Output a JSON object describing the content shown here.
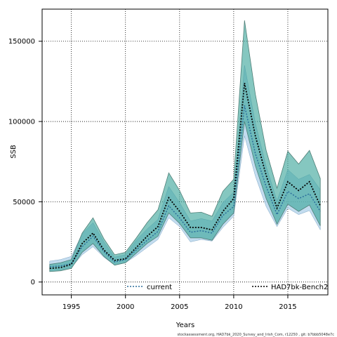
{
  "chart_data": {
    "type": "line",
    "xlabel": "Years",
    "ylabel": "SSB",
    "xlim": [
      1992.3,
      2018.7
    ],
    "ylim": [
      -8000,
      170000
    ],
    "x_ticks": [
      1995,
      2000,
      2005,
      2010,
      2015
    ],
    "y_ticks": [
      0,
      50000,
      100000,
      150000
    ],
    "grid": true,
    "legend_position": "bottom",
    "footnote": "stockassessment.org, HAD7bk_2020_Survey_and_Irish_Com, r12250 , git: b7bbb5048e7c",
    "colors": {
      "current": "#2b6f9c",
      "current_band": "#a9cde8",
      "bench": "#000000",
      "bench_band": "#3aa49a"
    },
    "x": [
      1993,
      1994,
      1995,
      1996,
      1997,
      1998,
      1999,
      2000,
      2001,
      2002,
      2003,
      2004,
      2005,
      2006,
      2007,
      2008,
      2009,
      2010,
      2011,
      2012,
      2013,
      2014,
      2015,
      2016,
      2017,
      2018
    ],
    "series": [
      {
        "name": "current",
        "values": [
          9500,
          10000,
          11500,
          22000,
          28500,
          19000,
          12500,
          14000,
          20000,
          26000,
          31500,
          47500,
          40000,
          31000,
          32000,
          30500,
          41500,
          47000,
          110000,
          80000,
          59500,
          42000,
          56500,
          52000,
          55000,
          44000
        ],
        "lower": [
          7000,
          7500,
          9000,
          17000,
          22000,
          15500,
          10500,
          12000,
          16500,
          21500,
          26500,
          40000,
          34500,
          25000,
          26500,
          25500,
          34000,
          41000,
          91000,
          66000,
          47000,
          34500,
          46000,
          42000,
          44500,
          32500
        ],
        "upper": [
          13000,
          14000,
          16000,
          30000,
          37000,
          25000,
          15500,
          17000,
          26000,
          33000,
          39000,
          59500,
          49500,
          38000,
          39500,
          38000,
          49500,
          56000,
          135000,
          99000,
          72000,
          50500,
          70000,
          64000,
          67000,
          57500
        ]
      },
      {
        "name": "HAD7bk-Bench2",
        "values": [
          8500,
          9000,
          11000,
          24000,
          30500,
          20000,
          13500,
          14500,
          21500,
          28500,
          34500,
          52500,
          44000,
          34000,
          34000,
          32500,
          44000,
          52000,
          124000,
          91000,
          66500,
          46000,
          62500,
          57000,
          62500,
          47500
        ],
        "lower": [
          6500,
          7000,
          8500,
          18500,
          24000,
          16000,
          10500,
          12000,
          18000,
          24000,
          28500,
          43000,
          36500,
          27500,
          27500,
          26000,
          36000,
          43000,
          100000,
          72500,
          52000,
          36000,
          48500,
          44000,
          48000,
          35000
        ],
        "upper": [
          11000,
          12000,
          14000,
          30500,
          40000,
          27000,
          17000,
          18500,
          27500,
          37000,
          45000,
          68000,
          57000,
          43000,
          43500,
          41000,
          56500,
          64000,
          163000,
          117000,
          82000,
          58500,
          81500,
          73500,
          82000,
          64500
        ]
      }
    ]
  }
}
